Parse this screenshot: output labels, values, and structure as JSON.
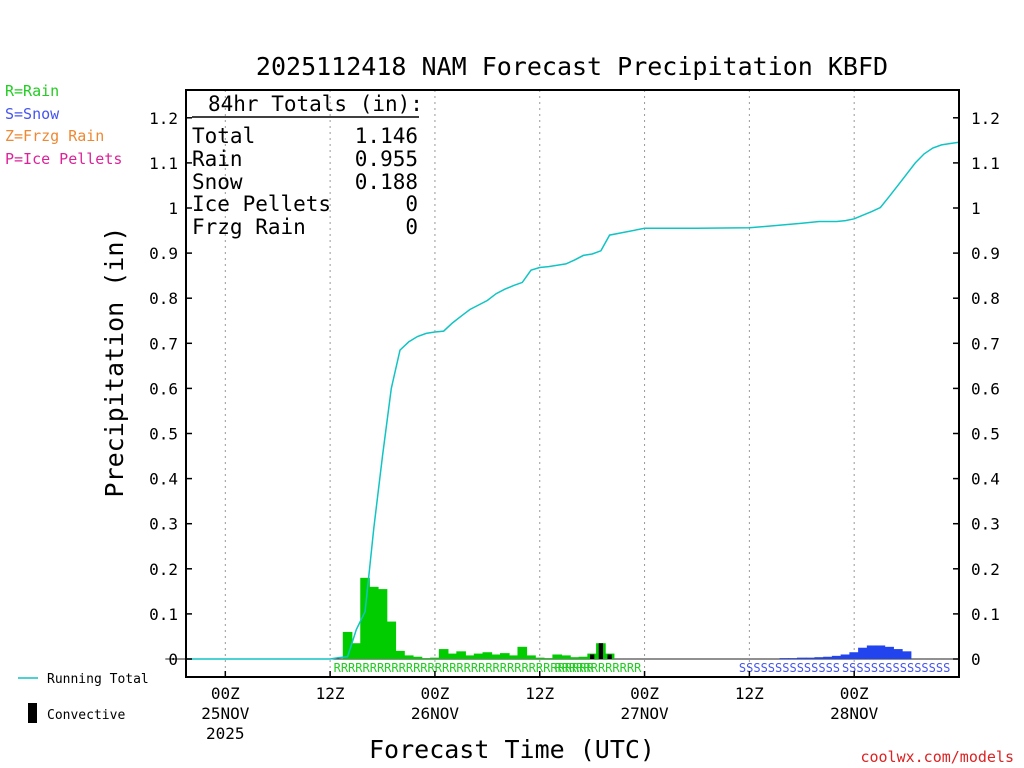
{
  "chart_data": {
    "type": "bar",
    "title": "2025112418 NAM Forecast Precipitation KBFD",
    "xlabel": "Forecast Time (UTC)",
    "ylabel": "Precipitation (in)",
    "ylim": [
      0,
      1.25
    ],
    "y_ticks": [
      "0",
      "0.1",
      "0.2",
      "0.3",
      "0.4",
      "0.5",
      "0.6",
      "0.7",
      "0.8",
      "0.9",
      "1",
      "1.1",
      "1.2"
    ],
    "x_range_hours": [
      -4.5,
      84
    ],
    "x_ticks": [
      {
        "hour": 0,
        "line1": "00Z",
        "line2": "25NOV",
        "line3": "2025"
      },
      {
        "hour": 12,
        "line1": "12Z",
        "line2": "",
        "line3": ""
      },
      {
        "hour": 24,
        "line1": "00Z",
        "line2": "26NOV",
        "line3": ""
      },
      {
        "hour": 36,
        "line1": "12Z",
        "line2": "",
        "line3": ""
      },
      {
        "hour": 48,
        "line1": "00Z",
        "line2": "27NOV",
        "line3": ""
      },
      {
        "hour": 60,
        "line1": "12Z",
        "line2": "",
        "line3": ""
      },
      {
        "hour": 72,
        "line1": "00Z",
        "line2": "28NOV",
        "line3": ""
      }
    ],
    "legend_types": [
      {
        "label": "R=Rain",
        "color": "#22cc22"
      },
      {
        "label": "S=Snow",
        "color": "#4455ee"
      },
      {
        "label": "Z=Frzg Rain",
        "color": "#ee8833"
      },
      {
        "label": "P=Ice Pellets",
        "color": "#dd2299"
      }
    ],
    "legend_lines": {
      "running_total": "Running Total",
      "convective": "Convective"
    },
    "totals_box": {
      "header": "84hr Totals (in):",
      "rows": [
        {
          "label": "Total",
          "value": "1.146"
        },
        {
          "label": "Rain",
          "value": "0.955"
        },
        {
          "label": "Snow",
          "value": "0.188"
        },
        {
          "label": "Ice Pellets",
          "value": "0"
        },
        {
          "label": "Frzg Rain",
          "value": "0"
        }
      ]
    },
    "type_strips": [
      {
        "text": "RRRRRRRRRRRRRRRRRRRRRRRRRRRRRRRRRRRR",
        "color": "#22cc22",
        "start_hour": 12.4
      },
      {
        "text": "RRRRRRRRRRRR",
        "color": "#22cc22",
        "start_hour": 37.7
      },
      {
        "text": "SSSSSSSSSSSSSS",
        "color": "#4455ee",
        "start_hour": 58.8
      },
      {
        "text": "SSSSSSSSSSSSSSS",
        "color": "#4455ee",
        "start_hour": 70.6
      }
    ],
    "series": [
      {
        "name": "Rain",
        "color": "#00cc00",
        "bars": [
          {
            "hour": 14,
            "value": 0.06
          },
          {
            "hour": 15,
            "value": 0.035
          },
          {
            "hour": 16,
            "value": 0.18
          },
          {
            "hour": 17,
            "value": 0.16
          },
          {
            "hour": 18,
            "value": 0.155
          },
          {
            "hour": 19,
            "value": 0.083
          },
          {
            "hour": 20,
            "value": 0.018
          },
          {
            "hour": 21,
            "value": 0.008
          },
          {
            "hour": 22,
            "value": 0.005
          },
          {
            "hour": 23,
            "value": 0.002
          },
          {
            "hour": 24,
            "value": 0.003
          },
          {
            "hour": 25,
            "value": 0.022
          },
          {
            "hour": 26,
            "value": 0.012
          },
          {
            "hour": 27,
            "value": 0.017
          },
          {
            "hour": 28,
            "value": 0.008
          },
          {
            "hour": 29,
            "value": 0.012
          },
          {
            "hour": 30,
            "value": 0.015
          },
          {
            "hour": 31,
            "value": 0.01
          },
          {
            "hour": 32,
            "value": 0.013
          },
          {
            "hour": 33,
            "value": 0.008
          },
          {
            "hour": 34,
            "value": 0.027
          },
          {
            "hour": 35,
            "value": 0.008
          },
          {
            "hour": 36,
            "value": 0.003
          },
          {
            "hour": 37,
            "value": 0.002
          },
          {
            "hour": 38,
            "value": 0.01
          },
          {
            "hour": 39,
            "value": 0.008
          },
          {
            "hour": 40,
            "value": 0.004
          },
          {
            "hour": 41,
            "value": 0.005
          },
          {
            "hour": 42,
            "value": 0.012
          },
          {
            "hour": 43,
            "value": 0.035
          },
          {
            "hour": 44,
            "value": 0.012
          }
        ]
      },
      {
        "name": "Snow",
        "color": "#2244ee",
        "bars": [
          {
            "hour": 64,
            "value": 0.002
          },
          {
            "hour": 65,
            "value": 0.002
          },
          {
            "hour": 66,
            "value": 0.003
          },
          {
            "hour": 67,
            "value": 0.003
          },
          {
            "hour": 68,
            "value": 0.004
          },
          {
            "hour": 69,
            "value": 0.005
          },
          {
            "hour": 70,
            "value": 0.007
          },
          {
            "hour": 71,
            "value": 0.01
          },
          {
            "hour": 72,
            "value": 0.015
          },
          {
            "hour": 73,
            "value": 0.025
          },
          {
            "hour": 74,
            "value": 0.03
          },
          {
            "hour": 75,
            "value": 0.03
          },
          {
            "hour": 76,
            "value": 0.027
          },
          {
            "hour": 77,
            "value": 0.022
          },
          {
            "hour": 78,
            "value": 0.017
          }
        ]
      },
      {
        "name": "Convective",
        "color": "#000000",
        "bars": [
          {
            "hour": 42,
            "value": 0.01
          },
          {
            "hour": 43,
            "value": 0.035
          },
          {
            "hour": 44,
            "value": 0.01
          }
        ]
      },
      {
        "name": "Running Total",
        "color": "#11c4c4",
        "x": [
          -4.5,
          12,
          13,
          14,
          15,
          16,
          17,
          18,
          19,
          20,
          21,
          22,
          23,
          24,
          25,
          26,
          27,
          28,
          29,
          30,
          31,
          32,
          33,
          34,
          35,
          36,
          37,
          38,
          39,
          40,
          41,
          42,
          43,
          44,
          48,
          54,
          60,
          66,
          68,
          70,
          71,
          72,
          73,
          74,
          75,
          76,
          77,
          78,
          79,
          80,
          81,
          82,
          83,
          84
        ],
        "y": [
          0,
          0,
          0.003,
          0.005,
          0.065,
          0.105,
          0.29,
          0.45,
          0.6,
          0.685,
          0.703,
          0.715,
          0.722,
          0.725,
          0.727,
          0.745,
          0.76,
          0.775,
          0.785,
          0.795,
          0.81,
          0.82,
          0.828,
          0.835,
          0.862,
          0.868,
          0.87,
          0.873,
          0.876,
          0.885,
          0.895,
          0.898,
          0.905,
          0.94,
          0.955,
          0.955,
          0.956,
          0.966,
          0.97,
          0.97,
          0.972,
          0.976,
          0.984,
          0.992,
          1.001,
          1.025,
          1.05,
          1.075,
          1.1,
          1.12,
          1.133,
          1.14,
          1.143,
          1.146
        ]
      }
    ]
  },
  "footer": {
    "credit": "coolwx.com/models"
  }
}
